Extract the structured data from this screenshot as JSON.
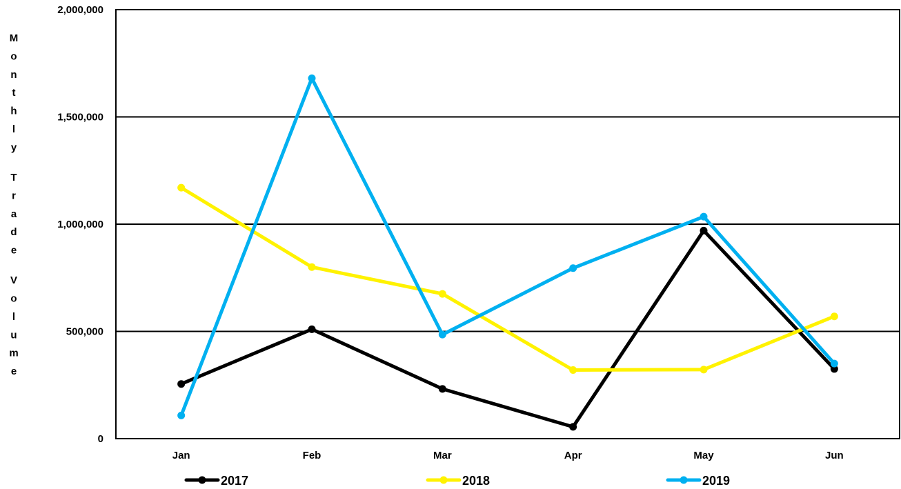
{
  "chart_data": {
    "type": "line",
    "title": "",
    "xlabel": "",
    "ylabel": "Monthly Trade Volume",
    "categories": [
      "Jan",
      "Feb",
      "Mar",
      "Apr",
      "May",
      "Jun"
    ],
    "ylim": [
      0,
      2000000
    ],
    "yticks": [
      0,
      500000,
      1000000,
      1500000,
      2000000
    ],
    "ytick_labels": [
      "0",
      "500,000",
      "1,000,000",
      "1,500,000",
      "2,000,000"
    ],
    "grid": true,
    "legend_position": "bottom",
    "series": [
      {
        "name": "2017",
        "color": "#000000",
        "values": [
          255000,
          510000,
          232000,
          55000,
          970000,
          325000
        ]
      },
      {
        "name": "2018",
        "color": "#FFF200",
        "values": [
          1170000,
          800000,
          675000,
          320000,
          322000,
          570000
        ]
      },
      {
        "name": "2019",
        "color": "#00B0F0",
        "values": [
          108000,
          1680000,
          485000,
          795000,
          1035000,
          350000
        ]
      }
    ]
  }
}
